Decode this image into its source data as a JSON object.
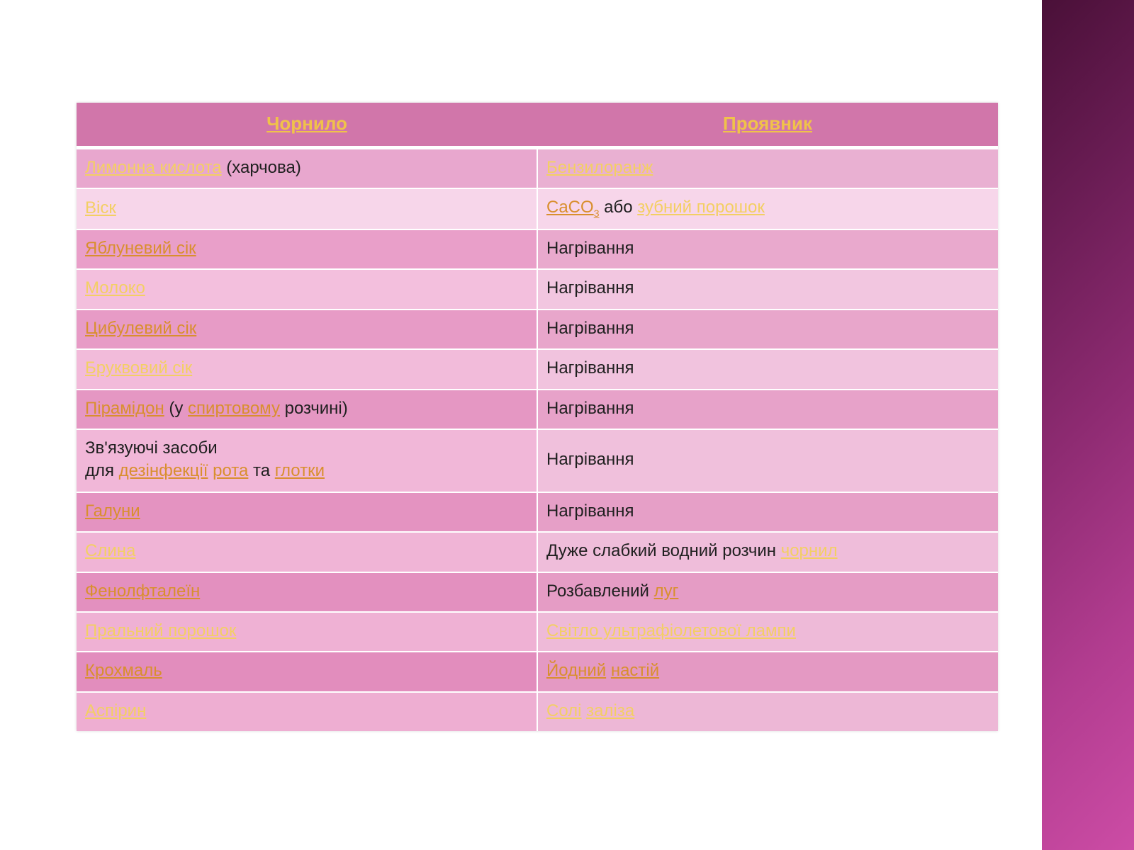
{
  "theme": {
    "header_bg": "#d176aa",
    "header_text": "#f0c24a",
    "link_color_light": "#f3cf63",
    "link_color_dark": "#d98f2e",
    "body_text": "#202020",
    "row_border": "#ffffff",
    "sidebar_gradient": [
      "#4a1038",
      "#6b1d55",
      "#8e2b72",
      "#b13c8f",
      "#cc4ca5"
    ],
    "font_family": "Trebuchet MS",
    "header_fontsize_pt": 20,
    "cell_fontsize_pt": 18
  },
  "table": {
    "type": "table",
    "columns": [
      "Чорнило",
      "Проявник"
    ],
    "column_widths_pct": [
      50,
      50
    ],
    "row_shades": [
      [
        "#e8a7ce",
        "#e9b0d2"
      ],
      [
        "#f7d6ea",
        "#f7d6ea"
      ],
      [
        "#e99fc9",
        "#e9a9cd"
      ],
      [
        "#f3bfdd",
        "#f2c6e0"
      ],
      [
        "#e79bc6",
        "#e8a6cb"
      ],
      [
        "#f2bbda",
        "#f1c3de"
      ],
      [
        "#e597c3",
        "#e7a2c9"
      ],
      [
        "#f1b7d8",
        "#f0c0dc"
      ],
      [
        "#e493c1",
        "#e69fc7"
      ],
      [
        "#f0b4d6",
        "#efbdda"
      ],
      [
        "#e390bf",
        "#e59cc5"
      ],
      [
        "#efb1d4",
        "#eebad8"
      ],
      [
        "#e28dbd",
        "#e499c3"
      ],
      [
        "#eeaed2",
        "#edb7d6"
      ]
    ],
    "rows": [
      {
        "ink": [
          {
            "t": "Лимонна кислота",
            "link": true,
            "c": "#f3cf63"
          },
          {
            "t": " (харчова)"
          }
        ],
        "dev": [
          {
            "t": "Бензилоранж",
            "link": true,
            "c": "#f3cf63"
          }
        ]
      },
      {
        "ink": [
          {
            "t": "Віск",
            "link": true,
            "c": "#f3cf63"
          }
        ],
        "dev": [
          {
            "t": "CaCO",
            "link": true,
            "c": "#d98f2e"
          },
          {
            "t": "3",
            "sub": true,
            "link": true,
            "c": "#d98f2e"
          },
          {
            "t": " або "
          },
          {
            "t": "зубний порошок",
            "link": true,
            "c": "#f3cf63"
          }
        ]
      },
      {
        "ink": [
          {
            "t": "Яблуневий сік",
            "link": true,
            "c": "#d98f2e"
          }
        ],
        "dev": [
          {
            "t": "Нагрівання"
          }
        ]
      },
      {
        "ink": [
          {
            "t": "Молоко",
            "link": true,
            "c": "#f3cf63"
          }
        ],
        "dev": [
          {
            "t": "Нагрівання"
          }
        ]
      },
      {
        "ink": [
          {
            "t": "Цибулевий сік",
            "link": true,
            "c": "#d98f2e"
          }
        ],
        "dev": [
          {
            "t": "Нагрівання"
          }
        ]
      },
      {
        "ink": [
          {
            "t": "Бруквовий сік",
            "link": true,
            "c": "#f3cf63"
          }
        ],
        "dev": [
          {
            "t": "Нагрівання"
          }
        ]
      },
      {
        "ink": [
          {
            "t": "Пірамідон",
            "link": true,
            "c": "#d98f2e"
          },
          {
            "t": " (у "
          },
          {
            "t": "спиртовому",
            "link": true,
            "c": "#d98f2e"
          },
          {
            "t": " розчині)"
          }
        ],
        "dev": [
          {
            "t": "Нагрівання"
          }
        ]
      },
      {
        "ink": [
          {
            "t": "Зв'язуючі засоби"
          },
          {
            "br": true
          },
          {
            "t": "для "
          },
          {
            "t": "дезінфекції",
            "link": true,
            "c": "#d98f2e"
          },
          {
            "t": " "
          },
          {
            "t": "рота",
            "link": true,
            "c": "#d98f2e"
          },
          {
            "t": " та "
          },
          {
            "t": "глотки",
            "link": true,
            "c": "#d98f2e"
          }
        ],
        "dev": [
          {
            "t": "Нагрівання"
          }
        ]
      },
      {
        "ink": [
          {
            "t": "Галуни",
            "link": true,
            "c": "#d98f2e"
          }
        ],
        "dev": [
          {
            "t": "Нагрівання"
          }
        ]
      },
      {
        "ink": [
          {
            "t": "Слина",
            "link": true,
            "c": "#f3cf63"
          }
        ],
        "dev": [
          {
            "t": "Дуже слабкий водний розчин "
          },
          {
            "t": "чорнил",
            "link": true,
            "c": "#f3cf63"
          }
        ]
      },
      {
        "ink": [
          {
            "t": "Фенолфталеїн",
            "link": true,
            "c": "#d98f2e"
          }
        ],
        "dev": [
          {
            "t": "Розбавлений "
          },
          {
            "t": "луг",
            "link": true,
            "c": "#d98f2e"
          }
        ]
      },
      {
        "ink": [
          {
            "t": "Пральний порошок",
            "link": true,
            "c": "#f3cf63"
          }
        ],
        "dev": [
          {
            "t": "Світло ультрафіолетової лампи",
            "link": true,
            "c": "#f3cf63"
          }
        ]
      },
      {
        "ink": [
          {
            "t": "Крохмаль",
            "link": true,
            "c": "#d98f2e"
          }
        ],
        "dev": [
          {
            "t": "Йодний",
            "link": true,
            "c": "#d98f2e"
          },
          {
            "t": " "
          },
          {
            "t": "настій",
            "link": true,
            "c": "#d98f2e"
          }
        ]
      },
      {
        "ink": [
          {
            "t": "Аспірин",
            "link": true,
            "c": "#f3cf63"
          }
        ],
        "dev": [
          {
            "t": "Солі",
            "link": true,
            "c": "#f3cf63"
          },
          {
            "t": " "
          },
          {
            "t": "заліза",
            "link": true,
            "c": "#f3cf63"
          }
        ]
      }
    ]
  }
}
